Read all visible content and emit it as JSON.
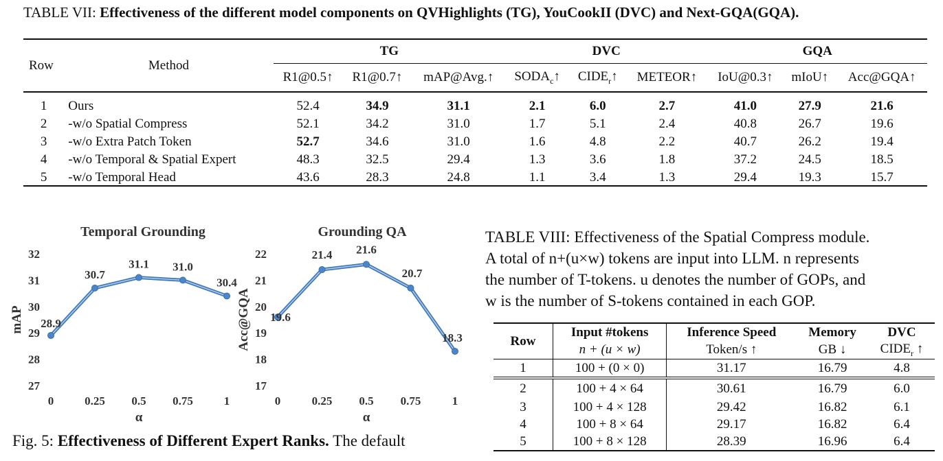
{
  "table7": {
    "caption_prefix": "TABLE VII: ",
    "caption_bold": "Effectiveness of the different model components on QVHighlights (TG), YouCookII (DVC) and Next-GQA(GQA).",
    "head_row": "Row",
    "head_method": "Method",
    "group_tg": "TG",
    "group_dvc": "DVC",
    "group_gqa": "GQA",
    "metrics": [
      "R1@0.5↑",
      "R1@0.7↑",
      "mAP@Avg.↑",
      "SODA",
      "CIDE",
      "METEOR↑",
      "IoU@0.3↑",
      "mIoU↑",
      "Acc@GQA↑"
    ],
    "soda_sub": "c",
    "cider_sub": "r",
    "arrow": "↑",
    "rows": [
      {
        "row": "1",
        "method": "Ours",
        "values": [
          "52.4",
          "34.9",
          "31.1",
          "2.1",
          "6.0",
          "2.7",
          "41.0",
          "27.9",
          "21.6"
        ],
        "bold": [
          false,
          true,
          true,
          true,
          true,
          true,
          true,
          true,
          true
        ]
      },
      {
        "row": "2",
        "method": "-w/o Spatial Compress",
        "values": [
          "52.1",
          "34.2",
          "31.0",
          "1.7",
          "5.1",
          "2.4",
          "40.8",
          "26.7",
          "19.6"
        ],
        "bold": [
          false,
          false,
          false,
          false,
          false,
          false,
          false,
          false,
          false
        ]
      },
      {
        "row": "3",
        "method": "-w/o Extra Patch Token",
        "values": [
          "52.7",
          "34.6",
          "31.0",
          "1.6",
          "4.8",
          "2.2",
          "40.7",
          "26.2",
          "19.4"
        ],
        "bold": [
          true,
          false,
          false,
          false,
          false,
          false,
          false,
          false,
          false
        ]
      },
      {
        "row": "4",
        "method": "-w/o Temporal & Spatial Expert",
        "values": [
          "48.3",
          "32.5",
          "29.4",
          "1.3",
          "3.6",
          "1.8",
          "37.2",
          "24.5",
          "18.5"
        ],
        "bold": [
          false,
          false,
          false,
          false,
          false,
          false,
          false,
          false,
          false
        ]
      },
      {
        "row": "5",
        "method": "-w/o Temporal Head",
        "values": [
          "43.6",
          "28.3",
          "24.8",
          "1.1",
          "3.4",
          "1.3",
          "29.4",
          "19.3",
          "15.7"
        ],
        "bold": [
          false,
          false,
          false,
          false,
          false,
          false,
          false,
          false,
          false
        ]
      }
    ]
  },
  "chart_data": [
    {
      "type": "line",
      "title": "Temporal Grounding",
      "xlabel": "α",
      "ylabel": "mAP",
      "categories": [
        "0",
        "0.25",
        "0.5",
        "0.75",
        "1"
      ],
      "values": [
        28.9,
        30.7,
        31.1,
        31.0,
        30.4
      ],
      "data_labels": [
        "28.9",
        "30.7",
        "31.1",
        "31.0",
        "30.4"
      ],
      "yticks": [
        "27",
        "28",
        "29",
        "30",
        "31",
        "32"
      ],
      "ylim": [
        27,
        32
      ],
      "color": "#4a86c8"
    },
    {
      "type": "line",
      "title": "Grounding QA",
      "xlabel": "α",
      "ylabel": "Acc@GQA",
      "categories": [
        "0",
        "0.25",
        "0.5",
        "0.75",
        "1"
      ],
      "values": [
        19.6,
        21.4,
        21.6,
        20.7,
        18.3
      ],
      "data_labels": [
        "19.6",
        "21.4",
        "21.6",
        "20.7",
        "18.3"
      ],
      "yticks": [
        "17",
        "18",
        "19",
        "20",
        "21",
        "22"
      ],
      "ylim": [
        17,
        22
      ],
      "color": "#4a86c8"
    }
  ],
  "fig5": {
    "prefix": "Fig. 5: ",
    "bold": "Effectiveness of Different Expert Ranks.",
    "rest": " The default"
  },
  "table8": {
    "caption_line1": "TABLE VIII: Effectiveness of the Spatial Compress module.",
    "caption_line2": "A total of n+(u×w) tokens are input into LLM. n represents",
    "caption_line3": "the number of T-tokens. u denotes the number of GOPs, and",
    "caption_line4": "w is the number of S-tokens contained in each GOP.",
    "head_row": "Row",
    "head_input": "Input #tokens",
    "head_input_sub": "n + (u × w)",
    "head_speed": "Inference Speed",
    "head_speed_sub": "Token/s ↑",
    "head_mem": "Memory",
    "head_mem_sub": "GB ↓",
    "head_dvc": "DVC",
    "head_dvc_sub": "CIDE",
    "head_dvc_sub_r": "r",
    "head_dvc_arrow": " ↑",
    "rows": [
      {
        "row": "1",
        "input": "100 + (0 × 0)",
        "speed": "31.17",
        "mem": "16.79",
        "dvc": "4.8"
      },
      {
        "row": "2",
        "input": "100 + 4 × 64",
        "speed": "30.61",
        "mem": "16.79",
        "dvc": "6.0"
      },
      {
        "row": "3",
        "input": "100 + 4 × 128",
        "speed": "29.42",
        "mem": "16.82",
        "dvc": "6.1"
      },
      {
        "row": "4",
        "input": "100 + 8 × 64",
        "speed": "29.17",
        "mem": "16.82",
        "dvc": "6.4"
      },
      {
        "row": "5",
        "input": "100 + 8 × 128",
        "speed": "28.39",
        "mem": "16.96",
        "dvc": "6.4"
      }
    ]
  }
}
